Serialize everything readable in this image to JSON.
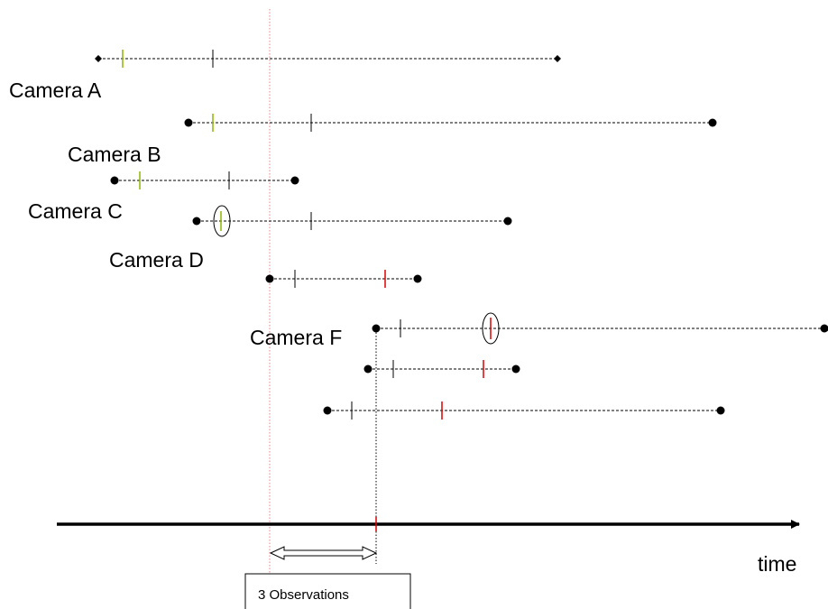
{
  "camera_labels": [
    "Camera A",
    "Camera B",
    "Camera C",
    "Camera D",
    "Camera F"
  ],
  "axis_label": "time",
  "box_label": "3 Observations",
  "colors": {
    "line": "#000000",
    "green_tick": "#8db600",
    "red_tick": "#e00000",
    "ref_line": "#f08080"
  }
}
